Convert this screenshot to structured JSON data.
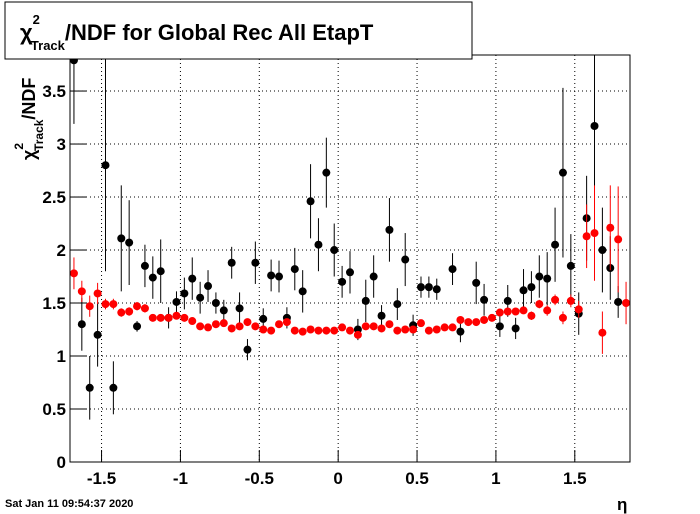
{
  "chart_data": {
    "type": "errorbar",
    "title": {
      "symbol": "χ",
      "sup": "2",
      "sub": "Track",
      "rest": "/NDF for Global Rec All EtapT"
    },
    "y_label": {
      "symbol": "χ",
      "sup": "2",
      "sub": "Track",
      "rest": "/NDF"
    },
    "x_label": "η",
    "date": "Sat Jan 11 09:54:37 2020",
    "x": [
      -1.675,
      -1.625,
      -1.575,
      -1.525,
      -1.475,
      -1.425,
      -1.375,
      -1.325,
      -1.275,
      -1.225,
      -1.175,
      -1.125,
      -1.075,
      -1.025,
      -0.975,
      -0.925,
      -0.875,
      -0.825,
      -0.775,
      -0.725,
      -0.675,
      -0.625,
      -0.575,
      -0.525,
      -0.475,
      -0.425,
      -0.375,
      -0.325,
      -0.275,
      -0.225,
      -0.175,
      -0.125,
      -0.075,
      -0.025,
      0.025,
      0.075,
      0.125,
      0.175,
      0.225,
      0.275,
      0.325,
      0.375,
      0.425,
      0.475,
      0.525,
      0.575,
      0.625,
      0.675,
      0.725,
      0.775,
      0.825,
      0.875,
      0.925,
      0.975,
      1.025,
      1.075,
      1.125,
      1.175,
      1.225,
      1.275,
      1.325,
      1.375,
      1.425,
      1.475,
      1.525,
      1.575,
      1.625,
      1.675,
      1.725,
      1.775,
      1.825
    ],
    "series": [
      {
        "color": "#000000",
        "values": [
          3.79,
          1.3,
          0.7,
          1.2,
          2.8,
          0.7,
          2.11,
          2.07,
          1.28,
          1.85,
          1.74,
          1.8,
          1.36,
          1.51,
          1.59,
          1.73,
          1.55,
          1.66,
          1.5,
          1.43,
          1.88,
          1.45,
          1.06,
          1.88,
          1.35,
          1.76,
          1.75,
          1.36,
          1.82,
          1.61,
          2.46,
          2.05,
          2.73,
          2.0,
          1.7,
          1.79,
          1.25,
          1.52,
          1.75,
          1.38,
          2.19,
          1.49,
          1.91,
          1.29,
          1.65,
          1.65,
          1.63,
          null,
          1.82,
          1.23,
          null,
          1.69,
          1.53,
          null,
          1.28,
          1.52,
          1.26,
          1.62,
          1.65,
          1.75,
          1.73,
          2.05,
          2.73,
          1.85,
          1.4,
          2.3,
          3.17,
          2.0,
          1.83,
          1.51,
          null
        ],
        "errors": [
          0.6,
          0.25,
          0.3,
          0.3,
          1.0,
          0.25,
          0.5,
          0.4,
          0.05,
          0.2,
          0.2,
          0.3,
          0.1,
          0.1,
          0.15,
          0.2,
          0.15,
          0.15,
          0.1,
          0.1,
          0.15,
          0.15,
          0.1,
          0.2,
          0.1,
          0.15,
          0.15,
          0.1,
          0.2,
          0.2,
          0.35,
          0.25,
          0.33,
          0.25,
          0.15,
          0.2,
          0.1,
          0.2,
          0.2,
          0.1,
          0.3,
          0.15,
          0.25,
          0.1,
          0.1,
          0.1,
          0.1,
          null,
          0.15,
          0.1,
          null,
          0.2,
          0.15,
          null,
          0.1,
          0.15,
          0.1,
          0.2,
          0.15,
          0.2,
          0.25,
          0.35,
          0.8,
          0.3,
          0.2,
          0.4,
          0.8,
          0.4,
          0.3,
          0.15,
          null
        ]
      },
      {
        "color": "#ff0000",
        "values": [
          1.78,
          1.61,
          1.47,
          1.59,
          1.49,
          1.49,
          1.41,
          1.42,
          1.47,
          1.45,
          1.36,
          1.36,
          1.36,
          1.38,
          1.36,
          1.33,
          1.28,
          1.27,
          1.3,
          1.31,
          1.26,
          1.28,
          1.32,
          1.28,
          1.25,
          1.24,
          1.3,
          1.32,
          1.24,
          1.23,
          1.25,
          1.24,
          1.24,
          1.24,
          1.27,
          1.24,
          1.2,
          1.28,
          1.28,
          1.26,
          1.3,
          1.24,
          1.25,
          1.25,
          1.31,
          1.24,
          1.25,
          1.27,
          1.27,
          1.34,
          1.32,
          1.32,
          1.34,
          1.36,
          1.41,
          1.42,
          1.42,
          1.43,
          1.38,
          1.49,
          1.43,
          1.53,
          1.36,
          1.52,
          1.44,
          2.13,
          2.16,
          1.22,
          2.21,
          2.1,
          1.5
        ],
        "errors": [
          0.15,
          0.1,
          0.1,
          0.1,
          0.05,
          0.05,
          0.04,
          0.04,
          0.04,
          0.04,
          0.03,
          0.03,
          0.03,
          0.03,
          0.03,
          0.03,
          0.03,
          0.03,
          0.03,
          0.03,
          0.03,
          0.03,
          0.03,
          0.03,
          0.03,
          0.03,
          0.03,
          0.03,
          0.03,
          0.03,
          0.03,
          0.03,
          0.03,
          0.03,
          0.03,
          0.03,
          0.03,
          0.03,
          0.03,
          0.03,
          0.03,
          0.03,
          0.03,
          0.03,
          0.03,
          0.03,
          0.03,
          0.03,
          0.03,
          0.03,
          0.03,
          0.03,
          0.03,
          0.03,
          0.03,
          0.03,
          0.03,
          0.03,
          0.04,
          0.04,
          0.05,
          0.05,
          0.06,
          0.06,
          0.08,
          0.3,
          0.45,
          0.2,
          0.4,
          0.5,
          0.2
        ]
      }
    ],
    "xlim": [
      -1.7,
      1.85
    ],
    "ylim": [
      0,
      3.84
    ],
    "xticks": [
      -1.5,
      -1,
      -0.5,
      0,
      0.5,
      1,
      1.5
    ],
    "yticks": [
      0,
      0.5,
      1,
      1.5,
      2,
      2.5,
      3,
      3.5
    ],
    "grid": true
  }
}
